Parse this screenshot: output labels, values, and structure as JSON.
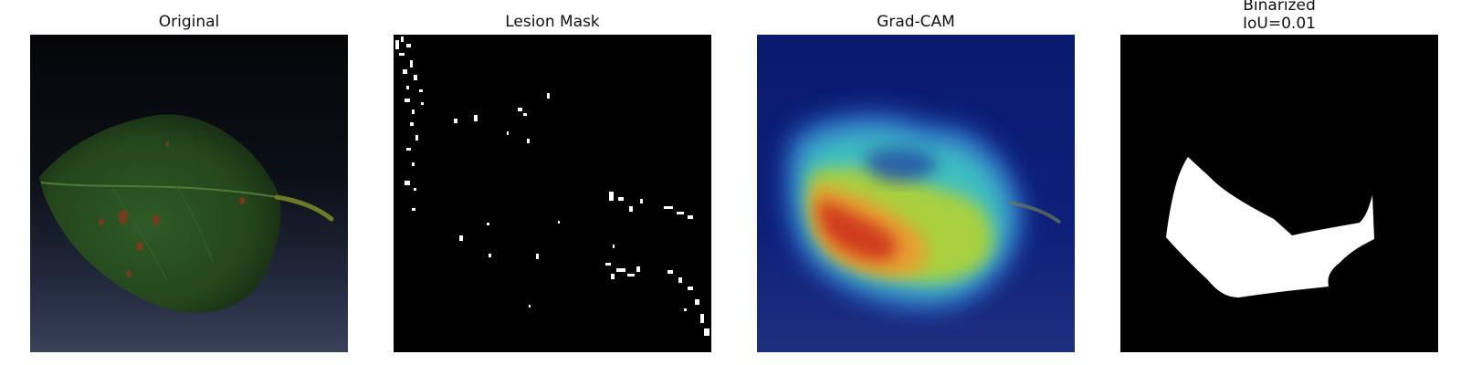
{
  "panels": [
    {
      "title": "Original"
    },
    {
      "title": "Lesion Mask"
    },
    {
      "title": "Grad-CAM"
    },
    {
      "title_line1": "Binarized",
      "title_line2": "IoU=0.01"
    }
  ]
}
